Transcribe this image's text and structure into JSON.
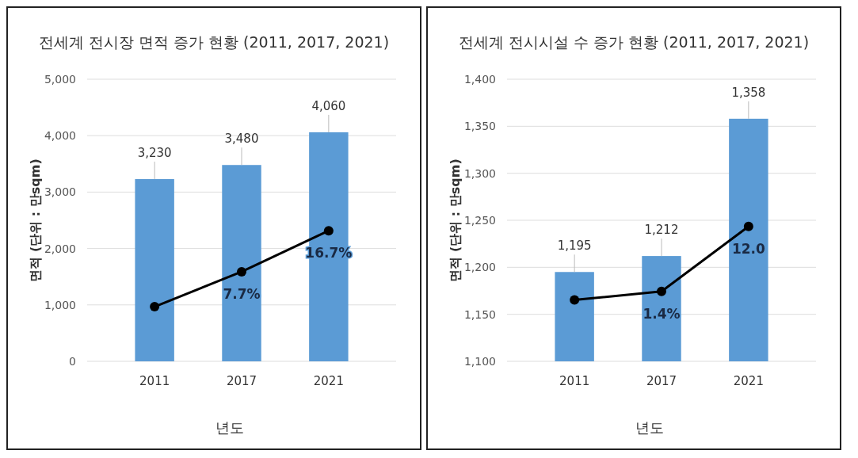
{
  "chart_data": [
    {
      "type": "bar",
      "title": "전세계 전시장 면적 증가 현황 (2011, 2017, 2021)",
      "xlabel": "년도",
      "ylabel": "면적 (단위 : 만sqm)",
      "categories": [
        "2011",
        "2017",
        "2021"
      ],
      "ylim": [
        0,
        5000
      ],
      "yticks": [
        0,
        {
          "value": 1000,
          "label": "1,000"
        },
        {
          "value": 2000,
          "label": "2,000"
        },
        {
          "value": 3000,
          "label": "3,000"
        },
        {
          "value": 4000,
          "label": "4,000"
        },
        {
          "value": 5000,
          "label": "5,000"
        }
      ],
      "y2lim": [
        -12,
        50
      ],
      "grid": "y",
      "series": [
        {
          "color": "#5b9bd5",
          "values": [
            3230,
            3480,
            4060
          ],
          "value_labels": [
            "3,230",
            "3,480",
            "4,060"
          ]
        },
        {
          "type": "line",
          "axis": "y2",
          "color": "#000000",
          "marker": "circle",
          "values": [
            0,
            7.7,
            16.7
          ],
          "value_labels": [
            null,
            "7.7%",
            "16.7%"
          ]
        }
      ]
    },
    {
      "type": "bar",
      "title": "전세계 전시시설 수 증가 현황 (2011, 2017, 2021)",
      "xlabel": "년도",
      "ylabel": "면적 (단위 : 만sqm)",
      "categories": [
        "2011",
        "2017",
        "2021"
      ],
      "ylim": [
        1100,
        1400
      ],
      "yticks": [
        {
          "value": 1100,
          "label": "1,100"
        },
        {
          "value": 1150,
          "label": "1,150"
        },
        {
          "value": 1200,
          "label": "1,200"
        },
        {
          "value": 1250,
          "label": "1,250"
        },
        {
          "value": 1300,
          "label": "1,300"
        },
        {
          "value": 1350,
          "label": "1,350"
        },
        {
          "value": 1400,
          "label": "1,400"
        }
      ],
      "y2lim": [
        -10,
        36
      ],
      "grid": "y",
      "series": [
        {
          "color": "#5b9bd5",
          "values": [
            1195,
            1212,
            1358
          ],
          "value_labels": [
            "1,195",
            "1,212",
            "1,358"
          ]
        },
        {
          "type": "line",
          "axis": "y2",
          "color": "#000000",
          "marker": "circle",
          "values": [
            0,
            1.4,
            12.0
          ],
          "value_labels": [
            null,
            "1.4%",
            "12.0"
          ]
        }
      ]
    }
  ]
}
